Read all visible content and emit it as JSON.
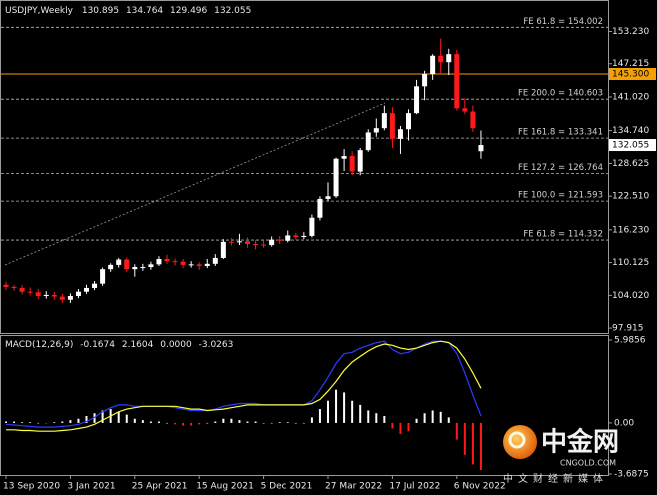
{
  "chart_data": [
    {
      "type": "candlestick",
      "title": "USDJPY,Weekly",
      "header_values": [
        130.895,
        134.764,
        129.496,
        132.055
      ],
      "categories": [
        "13 Sep 2020",
        null,
        null,
        null,
        null,
        null,
        null,
        null,
        "3 Jan 2021",
        null,
        null,
        null,
        null,
        null,
        null,
        null,
        "25 Apr 2021",
        null,
        null,
        null,
        null,
        null,
        null,
        null,
        "15 Aug 2021",
        null,
        null,
        null,
        null,
        null,
        null,
        null,
        "5 Dec 2021",
        null,
        null,
        null,
        null,
        null,
        null,
        null,
        "27 Mar 2022",
        null,
        null,
        null,
        null,
        null,
        null,
        null,
        "17 Jul 2022",
        null,
        null,
        null,
        null,
        null,
        null,
        null,
        "6 Nov 2022",
        null,
        null,
        null
      ],
      "open": [
        106.0,
        105.6,
        105.4,
        104.7,
        104.6,
        103.9,
        104.1,
        103.8,
        103.2,
        103.9,
        104.7,
        105.4,
        106.2,
        108.9,
        109.7,
        110.7,
        108.9,
        109.3,
        109.3,
        109.8,
        110.8,
        110.4,
        110.3,
        109.7,
        109.8,
        109.5,
        109.9,
        111.0,
        114.0,
        113.9,
        114.1,
        113.6,
        113.5,
        113.4,
        114.4,
        114.2,
        115.2,
        114.9,
        115.1,
        118.5,
        122.0,
        122.5,
        129.5,
        130.0,
        127.1,
        131.1,
        134.4,
        135.2,
        138.0,
        133.2,
        135.0,
        138.0,
        143.0,
        145.3,
        148.7,
        147.5,
        149.0,
        138.9,
        138.3,
        130.895
      ],
      "high": [
        106.6,
        106.0,
        105.9,
        105.5,
        105.2,
        104.8,
        104.7,
        104.3,
        104.4,
        105.2,
        106.0,
        106.7,
        109.2,
        110.0,
        111.0,
        111.1,
        109.8,
        109.9,
        110.3,
        111.3,
        111.6,
        110.9,
        110.8,
        110.4,
        110.2,
        110.8,
        111.7,
        114.5,
        114.7,
        115.5,
        114.8,
        114.3,
        114.2,
        115.0,
        115.1,
        116.1,
        115.7,
        115.8,
        119.1,
        122.5,
        125.1,
        129.7,
        131.3,
        130.9,
        131.5,
        135.0,
        137.0,
        139.4,
        139.1,
        135.6,
        138.7,
        144.2,
        145.9,
        149.0,
        151.9,
        150.0,
        149.8,
        140.8,
        139.4,
        134.764
      ],
      "low": [
        105.0,
        104.9,
        104.2,
        104.0,
        103.3,
        103.4,
        103.2,
        102.6,
        102.6,
        103.5,
        104.3,
        105.0,
        105.8,
        108.4,
        109.2,
        108.4,
        107.5,
        108.6,
        108.8,
        109.5,
        109.9,
        109.6,
        109.1,
        109.2,
        108.8,
        109.1,
        109.5,
        110.8,
        113.3,
        113.4,
        112.9,
        112.6,
        112.9,
        113.1,
        113.6,
        113.9,
        114.4,
        114.5,
        114.8,
        118.0,
        121.6,
        122.2,
        127.2,
        126.4,
        126.4,
        130.8,
        133.6,
        134.8,
        131.5,
        130.4,
        132.9,
        137.8,
        140.4,
        144.2,
        145.3,
        145.1,
        138.5,
        137.8,
        134.5,
        129.496
      ],
      "close": [
        105.6,
        105.4,
        104.7,
        104.6,
        103.9,
        104.1,
        103.8,
        103.2,
        103.9,
        104.7,
        105.4,
        106.2,
        108.9,
        109.7,
        110.7,
        108.9,
        109.3,
        109.3,
        109.8,
        110.8,
        110.4,
        110.3,
        109.7,
        109.8,
        109.5,
        109.9,
        111.0,
        114.0,
        113.9,
        114.1,
        113.6,
        113.5,
        113.4,
        114.4,
        114.2,
        115.2,
        114.9,
        115.1,
        118.5,
        122.0,
        122.5,
        129.5,
        130.0,
        127.1,
        131.1,
        134.4,
        135.2,
        138.0,
        133.2,
        135.0,
        138.0,
        143.0,
        145.3,
        148.7,
        147.5,
        149.0,
        138.9,
        138.3,
        135.2,
        132.055
      ],
      "up_color": "#ffffff",
      "down_color": "#ff1a1a",
      "ylim": [
        97.0,
        159.1
      ],
      "yticks": [
        {
          "value": 153.23,
          "label": "153.230"
        },
        147.215,
        {
          "value": 141.02,
          "label": "141.020"
        },
        {
          "value": 134.74,
          "label": "134.740"
        },
        128.625,
        {
          "value": 122.51,
          "label": "122.510"
        },
        {
          "value": 116.23,
          "label": "116.230"
        },
        110.125,
        {
          "value": 104.02,
          "label": "104.020"
        },
        97.915
      ],
      "levels": [
        {
          "label": "FE 61.8 = 154.002",
          "value": 154.002
        },
        {
          "label": "FE 200.0 = 140.603",
          "value": 140.603
        },
        {
          "label": "FE 161.8 = 133.341",
          "value": 133.341
        },
        {
          "label": "FE 127.2 = 126.764",
          "value": 126.764
        },
        {
          "label": "FE 100.0 = 121.593",
          "value": 121.593
        },
        {
          "label": "FE 61.8 = 114.332",
          "value": 114.332
        }
      ],
      "level_color": "#b8b8b8",
      "price_markers": [
        {
          "value": 145.3,
          "label": "145.300",
          "color": "#f5a000",
          "line": true
        },
        {
          "value": 132.055,
          "color": "#ffffff",
          "line": false
        }
      ]
    },
    {
      "type": "macd",
      "title": "MACD(12,26,9)",
      "header_values": [
        -0.1674,
        2.1604,
        {
          "value": 0,
          "label": "0.0000"
        },
        -3.0263
      ],
      "histogram": {
        "values": [
          0.1,
          0.1,
          0.05,
          0.05,
          0.0,
          -0.05,
          0.05,
          0.1,
          0.2,
          0.3,
          0.5,
          0.7,
          0.9,
          1.0,
          0.8,
          0.6,
          0.3,
          0.2,
          0.1,
          0.1,
          0.0,
          -0.1,
          -0.2,
          -0.2,
          -0.1,
          0.0,
          0.1,
          0.3,
          0.3,
          0.2,
          0.1,
          0.1,
          0.0,
          0.0,
          0.05,
          0.05,
          0.0,
          0.0,
          0.4,
          1.0,
          1.6,
          2.4,
          2.2,
          1.6,
          1.3,
          0.9,
          0.7,
          0.5,
          -0.4,
          -0.8,
          -0.6,
          0.3,
          0.7,
          0.9,
          0.8,
          0.4,
          -1.2,
          -2.3,
          -3.0,
          -3.4
        ],
        "positive_color": "#ffffff",
        "negative_color": "#ff1a1a"
      },
      "lines": [
        {
          "color": "#2a3cff",
          "values": [
            -0.1,
            -0.15,
            -0.2,
            -0.25,
            -0.3,
            -0.3,
            -0.3,
            -0.25,
            -0.2,
            -0.1,
            0.1,
            0.4,
            0.8,
            1.1,
            1.3,
            1.3,
            1.2,
            1.2,
            1.2,
            1.2,
            1.2,
            1.1,
            1.0,
            0.9,
            0.9,
            0.9,
            1.0,
            1.2,
            1.3,
            1.4,
            1.4,
            1.4,
            1.3,
            1.3,
            1.3,
            1.3,
            1.3,
            1.3,
            1.6,
            2.4,
            3.3,
            4.3,
            5.0,
            5.1,
            5.4,
            5.6,
            5.8,
            5.9,
            5.3,
            5.0,
            5.1,
            5.4,
            5.7,
            5.9,
            5.9,
            5.8,
            5.0,
            3.6,
            2.0,
            0.5
          ]
        },
        {
          "color": "#ffff3c",
          "values": [
            -0.5,
            -0.5,
            -0.55,
            -0.55,
            -0.6,
            -0.6,
            -0.6,
            -0.55,
            -0.5,
            -0.4,
            -0.3,
            -0.1,
            0.2,
            0.5,
            0.8,
            1.0,
            1.1,
            1.2,
            1.2,
            1.2,
            1.2,
            1.2,
            1.1,
            1.0,
            1.0,
            0.9,
            0.95,
            1.0,
            1.1,
            1.2,
            1.3,
            1.3,
            1.3,
            1.3,
            1.3,
            1.3,
            1.3,
            1.3,
            1.4,
            1.7,
            2.3,
            3.0,
            3.8,
            4.4,
            4.8,
            5.2,
            5.5,
            5.7,
            5.6,
            5.4,
            5.3,
            5.4,
            5.6,
            5.8,
            5.9,
            5.8,
            5.4,
            4.6,
            3.6,
            2.5
          ]
        }
      ],
      "ylim": [
        -3.6875,
        5.9856
      ],
      "yticks": [
        5.9856,
        {
          "value": 0,
          "label": "0.00"
        },
        -3.6875
      ]
    }
  ],
  "watermark": {
    "name": "中金网",
    "domain": "CNGOLD.COM",
    "tagline": "中文财经新媒体"
  }
}
